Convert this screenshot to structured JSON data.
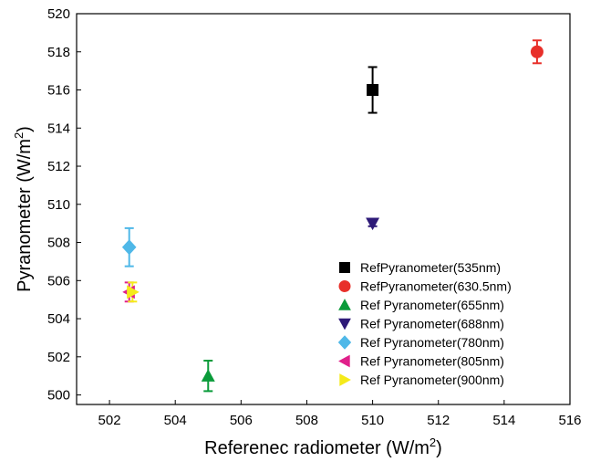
{
  "chart_data": {
    "type": "scatter",
    "title": "",
    "xlabel": "Referenec radiometer (W/m",
    "xlabel_sup": "2",
    "xlabel_end": ")",
    "ylabel": "Pyranometer (W/m",
    "ylabel_sup": "2",
    "ylabel_end": ")",
    "xlim": [
      501,
      516
    ],
    "ylim": [
      499.5,
      520
    ],
    "xticks": [
      502,
      504,
      506,
      508,
      510,
      512,
      514,
      516
    ],
    "yticks": [
      500,
      502,
      504,
      506,
      508,
      510,
      512,
      514,
      516,
      518,
      520
    ],
    "grid": false,
    "legend_position": "bottom-right",
    "series": [
      {
        "name": "RefPyranometer(535nm)",
        "marker": "square",
        "color": "#000000",
        "x": 510,
        "y": 516,
        "err": 1.2
      },
      {
        "name": "RefPyranometer(630.5nm)",
        "marker": "circle",
        "color": "#e8302a",
        "x": 515,
        "y": 518,
        "err": 0.6
      },
      {
        "name": "Ref Pyranometer(655nm)",
        "marker": "triangle-up",
        "color": "#0a9b3a",
        "x": 505,
        "y": 501,
        "err": 0.8
      },
      {
        "name": "Ref Pyranometer(688nm)",
        "marker": "triangle-down",
        "color": "#2e1a78",
        "x": 510,
        "y": 509,
        "err": 0.15
      },
      {
        "name": "Ref Pyranometer(780nm)",
        "marker": "diamond",
        "color": "#4fb8e8",
        "x": 502.6,
        "y": 507.75,
        "err": 1.0
      },
      {
        "name": "Ref Pyranometer(805nm)",
        "marker": "triangle-left",
        "color": "#e0208a",
        "x": 502.6,
        "y": 505.4,
        "err": 0.5
      },
      {
        "name": "Ref Pyranometer(900nm)",
        "marker": "triangle-right",
        "color": "#f5ea1a",
        "x": 502.7,
        "y": 505.4,
        "err": 0.5
      }
    ]
  }
}
